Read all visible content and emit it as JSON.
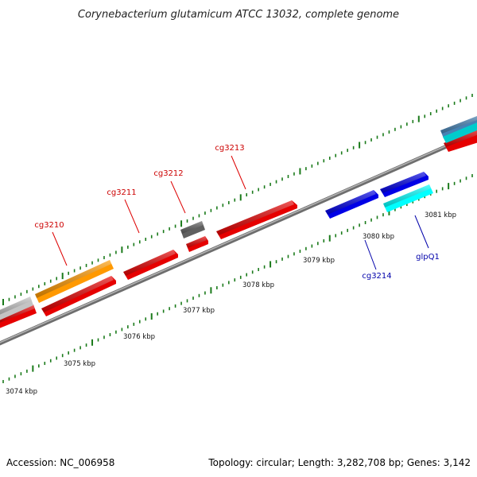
{
  "title": "Corynebacterium glutamicum ATCC 13032, complete genome",
  "footer": {
    "accession": "Accession: NC_006958",
    "summary": "Topology: circular; Length: 3,282,708 bp; Genes: 3,142"
  },
  "colors": {
    "forward_gene": "#ff0000",
    "reverse_gene": "#0000ff",
    "forward_label": "#cc0000",
    "reverse_label": "#0000aa",
    "tick": "#1a7a1a",
    "backbone": "#808080"
  },
  "kbp_labels": [
    "3074 kbp",
    "3075 kbp",
    "3076 kbp",
    "3077 kbp",
    "3078 kbp",
    "3079 kbp",
    "3080 kbp",
    "3081 kbp"
  ],
  "gene_labels": [
    "cg3210",
    "cg3211",
    "cg3212",
    "cg3213",
    "cg3214",
    "glpQ1"
  ]
}
